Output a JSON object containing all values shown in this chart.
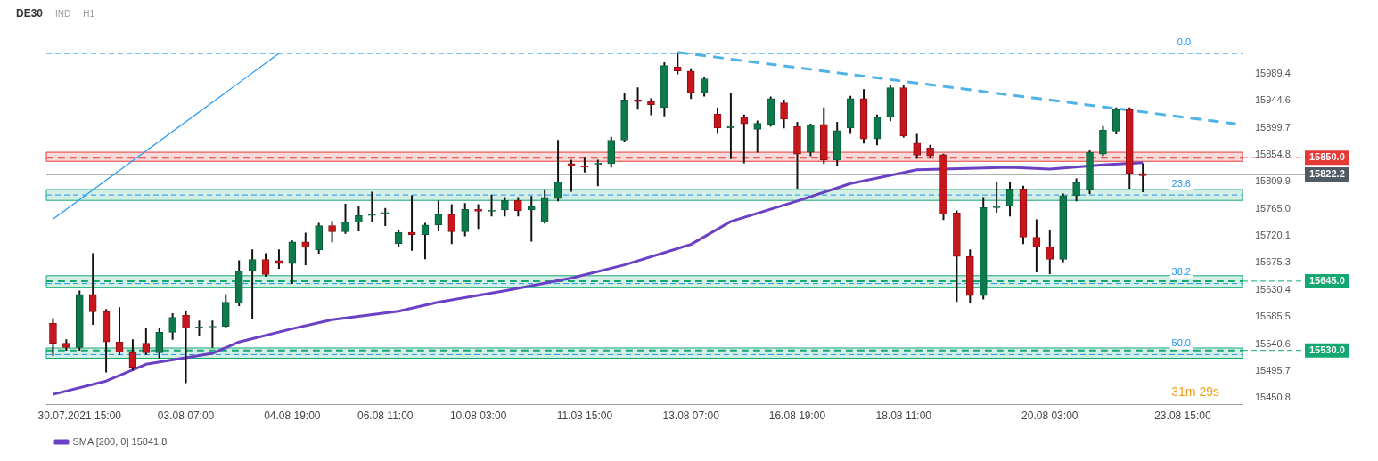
{
  "chart_data": {
    "type": "candlestick",
    "title": "DE30",
    "annotations": [
      "IND",
      "H1",
      {
        "text": "0.0",
        "y": 16023
      },
      {
        "text": "23.6",
        "y": 15788
      },
      {
        "text": "38.2",
        "y": 15641
      },
      {
        "text": "50.0",
        "y": 15523
      },
      "31m 29s"
    ],
    "categories": [
      null,
      null,
      "30.07.2021 15:00",
      null,
      null,
      null,
      null,
      null,
      null,
      null,
      "03.08 07:00",
      null,
      null,
      null,
      null,
      null,
      null,
      null,
      "04.08 19:00",
      null,
      null,
      null,
      null,
      null,
      null,
      "06.08 11:00",
      null,
      null,
      null,
      null,
      null,
      null,
      "10.08 03:00",
      null,
      null,
      null,
      null,
      null,
      null,
      null,
      "11.08 15:00",
      null,
      null,
      null,
      null,
      null,
      null,
      null,
      "13.08 07:00",
      null,
      null,
      null,
      null,
      null,
      null,
      null,
      "16.08 19:00",
      null,
      null,
      null,
      null,
      null,
      null,
      null,
      "18.08 11:00",
      null,
      null,
      null,
      null,
      null,
      null,
      null,
      null,
      null,
      null,
      "20.08 03:00",
      null,
      null,
      null,
      null,
      null,
      null,
      null,
      null,
      null,
      "23.08 15:00",
      null,
      null,
      null,
      null
    ],
    "ohlc": [
      [
        15575,
        15583,
        15521,
        15542
      ],
      [
        15542,
        15548,
        15530,
        15535
      ],
      [
        15535,
        15629,
        15530,
        15623
      ],
      [
        15623,
        15691,
        15573,
        15594
      ],
      [
        15594,
        15598,
        15494,
        15544
      ],
      [
        15544,
        15601,
        15523,
        15527
      ],
      [
        15527,
        15548,
        15498,
        15502
      ],
      [
        15542,
        15567,
        15523,
        15526
      ],
      [
        15526,
        15567,
        15517,
        15560
      ],
      [
        15560,
        15591,
        15548,
        15585
      ],
      [
        15588,
        15595,
        15476,
        15567
      ],
      [
        15567,
        15579,
        15554,
        15569
      ],
      [
        15569,
        15579,
        15535,
        15570
      ],
      [
        15570,
        15623,
        15567,
        15610
      ],
      [
        15608,
        15679,
        15604,
        15662
      ],
      [
        15662,
        15697,
        15583,
        15681
      ],
      [
        15681,
        15691,
        15653,
        15656
      ],
      [
        15679,
        15697,
        15666,
        15674
      ],
      [
        15674,
        15712,
        15641,
        15710
      ],
      [
        15710,
        15725,
        15672,
        15701
      ],
      [
        15697,
        15741,
        15691,
        15737
      ],
      [
        15737,
        15744,
        15710,
        15727
      ],
      [
        15727,
        15773,
        15724,
        15743
      ],
      [
        15743,
        15769,
        15728,
        15754
      ],
      [
        15754,
        15793,
        15744,
        15756
      ],
      [
        15756,
        15766,
        15737,
        15759
      ],
      [
        15707,
        15730,
        15703,
        15726
      ],
      [
        15726,
        15787,
        15696,
        15722
      ],
      [
        15722,
        15741,
        15682,
        15738
      ],
      [
        15738,
        15778,
        15728,
        15756
      ],
      [
        15756,
        15772,
        15707,
        15727
      ],
      [
        15727,
        15774,
        15720,
        15764
      ],
      [
        15764,
        15772,
        15732,
        15761
      ],
      [
        15761,
        15788,
        15753,
        15763
      ],
      [
        15763,
        15784,
        15753,
        15779
      ],
      [
        15779,
        15784,
        15753,
        15762
      ],
      [
        15763,
        15786,
        15711,
        15769
      ],
      [
        15743,
        15797,
        15741,
        15784
      ],
      [
        15782,
        15879,
        15778,
        15810
      ],
      [
        15840,
        15846,
        15794,
        15836
      ],
      [
        15835,
        15851,
        15826,
        15834
      ],
      [
        15839,
        15846,
        15803,
        15841
      ],
      [
        15840,
        15884,
        15834,
        15879
      ],
      [
        15879,
        15957,
        15876,
        15946
      ],
      [
        15946,
        15966,
        15930,
        15943
      ],
      [
        15943,
        15948,
        15921,
        15938
      ],
      [
        15933,
        16008,
        15919,
        16003
      ],
      [
        16001,
        16023,
        15989,
        15994
      ],
      [
        15994,
        15998,
        15948,
        15958
      ],
      [
        15958,
        15983,
        15952,
        15981
      ],
      [
        15922,
        15933,
        15890,
        15899
      ],
      [
        15899,
        15956,
        15848,
        15902
      ],
      [
        15917,
        15921,
        15841,
        15906
      ],
      [
        15897,
        15911,
        15859,
        15907
      ],
      [
        15905,
        15951,
        15902,
        15948
      ],
      [
        15941,
        15946,
        15899,
        15914
      ],
      [
        15902,
        15909,
        15799,
        15856
      ],
      [
        15859,
        15906,
        15853,
        15904
      ],
      [
        15905,
        15933,
        15840,
        15846
      ],
      [
        15846,
        15909,
        15836,
        15895
      ],
      [
        15899,
        15952,
        15890,
        15948
      ],
      [
        15948,
        15963,
        15874,
        15881
      ],
      [
        15881,
        15921,
        15871,
        15917
      ],
      [
        15917,
        15971,
        15911,
        15966
      ],
      [
        15966,
        15971,
        15884,
        15886
      ],
      [
        15874,
        15889,
        15849,
        15854
      ],
      [
        15866,
        15871,
        15851,
        15853
      ],
      [
        15855,
        15856,
        15747,
        15756
      ],
      [
        15758,
        15762,
        15611,
        15686
      ],
      [
        15686,
        15697,
        15610,
        15621
      ],
      [
        15621,
        15784,
        15615,
        15767
      ],
      [
        15767,
        15809,
        15759,
        15770
      ],
      [
        15770,
        15809,
        15753,
        15798
      ],
      [
        15798,
        15803,
        15707,
        15718
      ],
      [
        15718,
        15747,
        15660,
        15702
      ],
      [
        15702,
        15729,
        15657,
        15681
      ],
      [
        15681,
        15790,
        15677,
        15787
      ],
      [
        15787,
        15815,
        15778,
        15809
      ],
      [
        15797,
        15862,
        15790,
        15859
      ],
      [
        15856,
        15902,
        15853,
        15896
      ],
      [
        15894,
        15933,
        15889,
        15930
      ],
      [
        15930,
        15933,
        15799,
        15824
      ],
      [
        15824,
        15840,
        15793,
        15820
      ],
      null,
      null,
      null,
      null,
      null,
      null,
      null
    ],
    "series": [
      {
        "name": "SMA [200, 0] 15841.8",
        "type": "line",
        "color": "#6a40c4",
        "values": [
          15457,
          null,
          null,
          null,
          15479,
          null,
          null,
          15507,
          null,
          null,
          null,
          null,
          15525,
          null,
          15544,
          null,
          null,
          null,
          15566,
          null,
          null,
          15581,
          null,
          null,
          null,
          null,
          15595,
          null,
          null,
          15610,
          null,
          null,
          null,
          null,
          15629,
          null,
          null,
          null,
          null,
          15650,
          null,
          null,
          null,
          15672,
          null,
          null,
          null,
          null,
          15706,
          null,
          null,
          15744,
          null,
          null,
          null,
          null,
          15778,
          null,
          null,
          null,
          15807,
          null,
          null,
          null,
          null,
          15830,
          null,
          null,
          null,
          null,
          null,
          null,
          15834,
          null,
          null,
          15831,
          null,
          null,
          null,
          15838,
          null,
          null,
          15841.8,
          null,
          null,
          null,
          null,
          null,
          null,
          null
        ]
      },
      {
        "type": "line",
        "color": "#4fb3e8",
        "line_style": "dashed",
        "values": [
          null,
          null,
          null,
          null,
          null,
          null,
          null,
          null,
          null,
          null,
          null,
          null,
          null,
          null,
          null,
          null,
          null,
          null,
          null,
          null,
          null,
          null,
          null,
          null,
          null,
          null,
          null,
          null,
          null,
          null,
          null,
          null,
          null,
          null,
          null,
          null,
          null,
          null,
          null,
          null,
          null,
          null,
          null,
          null,
          null,
          null,
          null,
          16025,
          null,
          null,
          null,
          null,
          null,
          null,
          null,
          null,
          null,
          null,
          null,
          null,
          null,
          null,
          null,
          null,
          null,
          null,
          null,
          null,
          null,
          null,
          null,
          null,
          null,
          null,
          null,
          null,
          null,
          null,
          null,
          null,
          null,
          null,
          null,
          null,
          null,
          null,
          null,
          null,
          null,
          15906
        ]
      },
      {
        "type": "line",
        "color": "#2196f3",
        "line_style": "solid",
        "values": [
          15748,
          null,
          null,
          null,
          null,
          null,
          null,
          null,
          null,
          null,
          null,
          null,
          null,
          null,
          null,
          null,
          null,
          16023,
          null,
          null,
          null,
          null,
          null,
          null,
          null,
          null,
          null,
          null,
          null,
          null,
          null,
          null,
          null,
          null,
          null,
          null,
          null,
          null,
          null,
          null,
          null,
          null,
          null,
          null,
          null,
          null,
          null,
          null,
          null,
          null,
          null,
          null,
          null,
          null,
          null,
          null,
          null,
          null,
          null,
          null,
          null,
          null,
          null,
          null,
          null,
          null,
          null,
          null,
          null,
          null,
          null,
          null,
          null,
          null,
          null,
          null,
          null,
          null,
          null,
          null,
          null,
          null,
          null,
          null,
          null,
          null,
          null,
          null,
          null,
          null
        ]
      }
    ],
    "ref_lines": [
      {
        "axis": "y",
        "value": 16023,
        "color": "#2196f3",
        "line_style": "dashed"
      },
      {
        "axis": "y",
        "value": 15788,
        "color": "#2196f3",
        "line_style": "dashed"
      },
      {
        "axis": "y",
        "value": 15641,
        "color": "#2196f3",
        "line_style": "dashed"
      },
      {
        "axis": "y",
        "value": 15523,
        "color": "#2196f3",
        "line_style": "dashed"
      },
      {
        "axis": "y",
        "value": 15850,
        "label": "15850.0",
        "color": "#e53935",
        "line_style": "dashed"
      },
      {
        "axis": "y",
        "value": 15645,
        "label": "15645.0",
        "color": "#13a872",
        "line_style": "dashed"
      },
      {
        "axis": "y",
        "value": 15530,
        "label": "15530.0",
        "color": "#13a872",
        "line_style": "dashed"
      },
      {
        "axis": "y",
        "value": 15822.2,
        "label": "15822.2",
        "color": "#505a64",
        "line_style": "solid"
      }
    ],
    "bands": [
      {
        "axis": "y",
        "from": 15844,
        "to": 15859,
        "color": "#e53935"
      },
      {
        "axis": "y",
        "from": 15779,
        "to": 15797,
        "color": "#13a872"
      },
      {
        "axis": "y",
        "from": 15634,
        "to": 15654,
        "color": "#13a872"
      },
      {
        "axis": "y",
        "from": 15517,
        "to": 15534,
        "color": "#13a872"
      }
    ],
    "ylim": [
      15440,
      16040
    ],
    "yticks": [
      15989.4,
      15944.6,
      15899.7,
      15854.8,
      15809.9,
      {
        "value": 15765,
        "label": "15765.0"
      },
      15720.1,
      15675.3,
      15630.4,
      15585.5,
      15540.6,
      15495.7,
      15450.8
    ],
    "grid": false,
    "legend": "bottom left"
  }
}
